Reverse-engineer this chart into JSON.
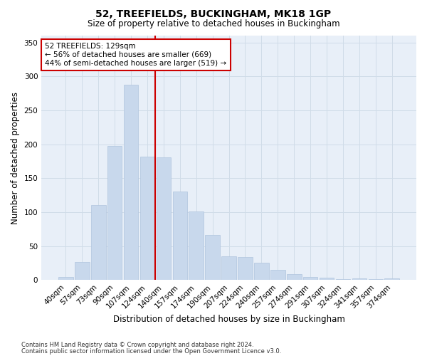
{
  "title1": "52, TREEFIELDS, BUCKINGHAM, MK18 1GP",
  "title2": "Size of property relative to detached houses in Buckingham",
  "xlabel": "Distribution of detached houses by size in Buckingham",
  "ylabel": "Number of detached properties",
  "categories": [
    "40sqm",
    "57sqm",
    "73sqm",
    "90sqm",
    "107sqm",
    "124sqm",
    "140sqm",
    "157sqm",
    "174sqm",
    "190sqm",
    "207sqm",
    "224sqm",
    "240sqm",
    "257sqm",
    "274sqm",
    "291sqm",
    "307sqm",
    "324sqm",
    "341sqm",
    "357sqm",
    "374sqm"
  ],
  "values": [
    5,
    27,
    110,
    197,
    288,
    182,
    181,
    130,
    101,
    66,
    35,
    34,
    25,
    15,
    9,
    5,
    3,
    1,
    2,
    1,
    2
  ],
  "bar_color": "#c8d8ec",
  "bar_edgecolor": "#b0c4de",
  "grid_color": "#d0dce8",
  "background_color": "#e8eff8",
  "vline_color": "#cc0000",
  "annotation_text": "52 TREEFIELDS: 129sqm\n← 56% of detached houses are smaller (669)\n44% of semi-detached houses are larger (519) →",
  "annotation_box_edgecolor": "#cc0000",
  "ylim": [
    0,
    360
  ],
  "yticks": [
    0,
    50,
    100,
    150,
    200,
    250,
    300,
    350
  ],
  "footer1": "Contains HM Land Registry data © Crown copyright and database right 2024.",
  "footer2": "Contains public sector information licensed under the Open Government Licence v3.0."
}
